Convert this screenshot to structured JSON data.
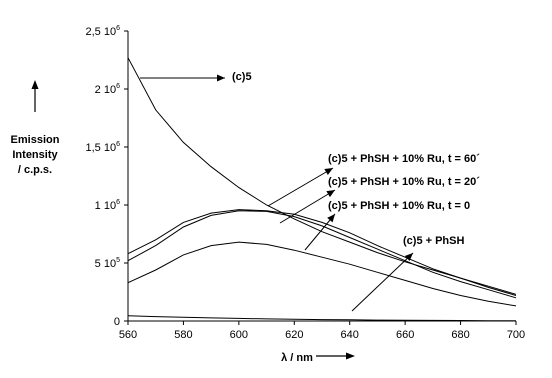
{
  "chart_data": {
    "type": "line",
    "xlabel": "λ / nm",
    "ylabel": [
      "Emission",
      "Intensity",
      "/ c.p.s."
    ],
    "xlim": [
      560,
      700
    ],
    "ylim": [
      0,
      2500000
    ],
    "x_ticks": [
      560,
      580,
      600,
      620,
      640,
      660,
      680,
      700
    ],
    "y_ticks": [
      {
        "value": 0,
        "mantissa": "0",
        "exp": ""
      },
      {
        "value": 500000,
        "mantissa": "5 10",
        "exp": "5"
      },
      {
        "value": 1000000,
        "mantissa": "1 10",
        "exp": "6"
      },
      {
        "value": 1500000,
        "mantissa": "1,5 10",
        "exp": "6"
      },
      {
        "value": 2000000,
        "mantissa": "2 10",
        "exp": "6"
      },
      {
        "value": 2500000,
        "mantissa": "2,5 10",
        "exp": "6"
      }
    ],
    "x": [
      560,
      570,
      580,
      590,
      600,
      610,
      620,
      630,
      640,
      650,
      660,
      670,
      680,
      690,
      700
    ],
    "series": [
      {
        "name": "(c)5",
        "values": [
          2270000,
          1820000,
          1540000,
          1330000,
          1150000,
          1000000,
          880000,
          770000,
          680000,
          590000,
          510000,
          440000,
          370000,
          300000,
          230000
        ]
      },
      {
        "name": "(c)5 + PhSH + 10% Ru, t = 60´",
        "values": [
          580000,
          700000,
          850000,
          930000,
          960000,
          950000,
          920000,
          850000,
          760000,
          650000,
          550000,
          450000,
          370000,
          290000,
          220000
        ]
      },
      {
        "name": "(c)5 + PhSH + 10% Ru, t = 20´",
        "values": [
          520000,
          650000,
          810000,
          910000,
          950000,
          945000,
          900000,
          820000,
          720000,
          620000,
          520000,
          420000,
          340000,
          270000,
          200000
        ]
      },
      {
        "name": "(c)5 + PhSH + 10% Ru, t = 0",
        "values": [
          330000,
          440000,
          570000,
          650000,
          680000,
          660000,
          610000,
          550000,
          490000,
          420000,
          350000,
          280000,
          220000,
          170000,
          130000
        ]
      },
      {
        "name": "(c)5 + PhSH",
        "values": [
          45000,
          38000,
          32000,
          27000,
          22000,
          18000,
          15000,
          12000,
          10000,
          8000,
          6000,
          5000,
          4000,
          3000,
          2000
        ]
      }
    ],
    "annotations": [
      {
        "text": "(c)5",
        "series": 0
      },
      {
        "text": "(c)5 + PhSH + 10% Ru, t = 60´",
        "series": 1
      },
      {
        "text": "(c)5 + PhSH + 10% Ru, t = 20´",
        "series": 2
      },
      {
        "text": "(c)5 + PhSH + 10% Ru, t = 0",
        "series": 3
      },
      {
        "text": "(c)5 + PhSH",
        "series": 4
      }
    ],
    "grid": false,
    "legend": "none"
  }
}
